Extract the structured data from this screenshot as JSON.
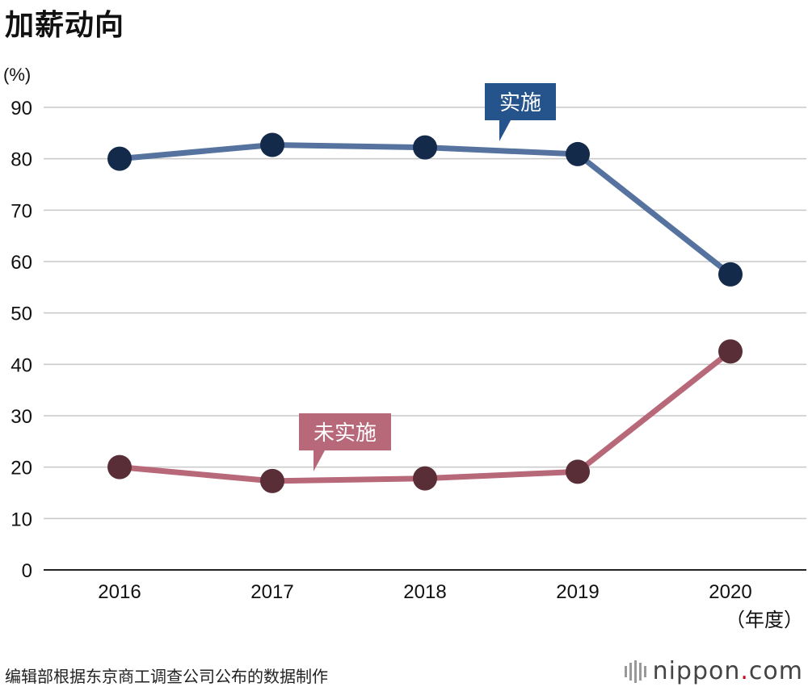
{
  "title": "加薪动向",
  "source": "编辑部根据东京商工调查公司公布的数据制作",
  "logo": {
    "name": "nippon",
    "dot": ".",
    "suffix": "com"
  },
  "colors": {
    "implemented_line": "#56739f",
    "implemented_marker": "#142a4a",
    "implemented_label_bg": "#25538c",
    "not_implemented_line": "#b76879",
    "not_implemented_marker": "#5a2e37",
    "not_implemented_label_bg": "#b76879",
    "grid": "#c8c8c8",
    "axis": "#222222"
  },
  "chart_data": {
    "type": "line",
    "title": "加薪动向",
    "x": [
      "2016",
      "2017",
      "2018",
      "2019",
      "2020"
    ],
    "xlabel": "（年度）",
    "ylabel": "(%)",
    "ylim": [
      0,
      90
    ],
    "yticks": [
      0,
      10,
      20,
      30,
      40,
      50,
      60,
      70,
      80,
      90
    ],
    "grid": true,
    "series": [
      {
        "name": "实施",
        "values": [
          80.0,
          82.7,
          82.2,
          80.9,
          57.5
        ]
      },
      {
        "name": "未实施",
        "values": [
          20.0,
          17.3,
          17.8,
          19.1,
          42.5
        ]
      }
    ]
  }
}
